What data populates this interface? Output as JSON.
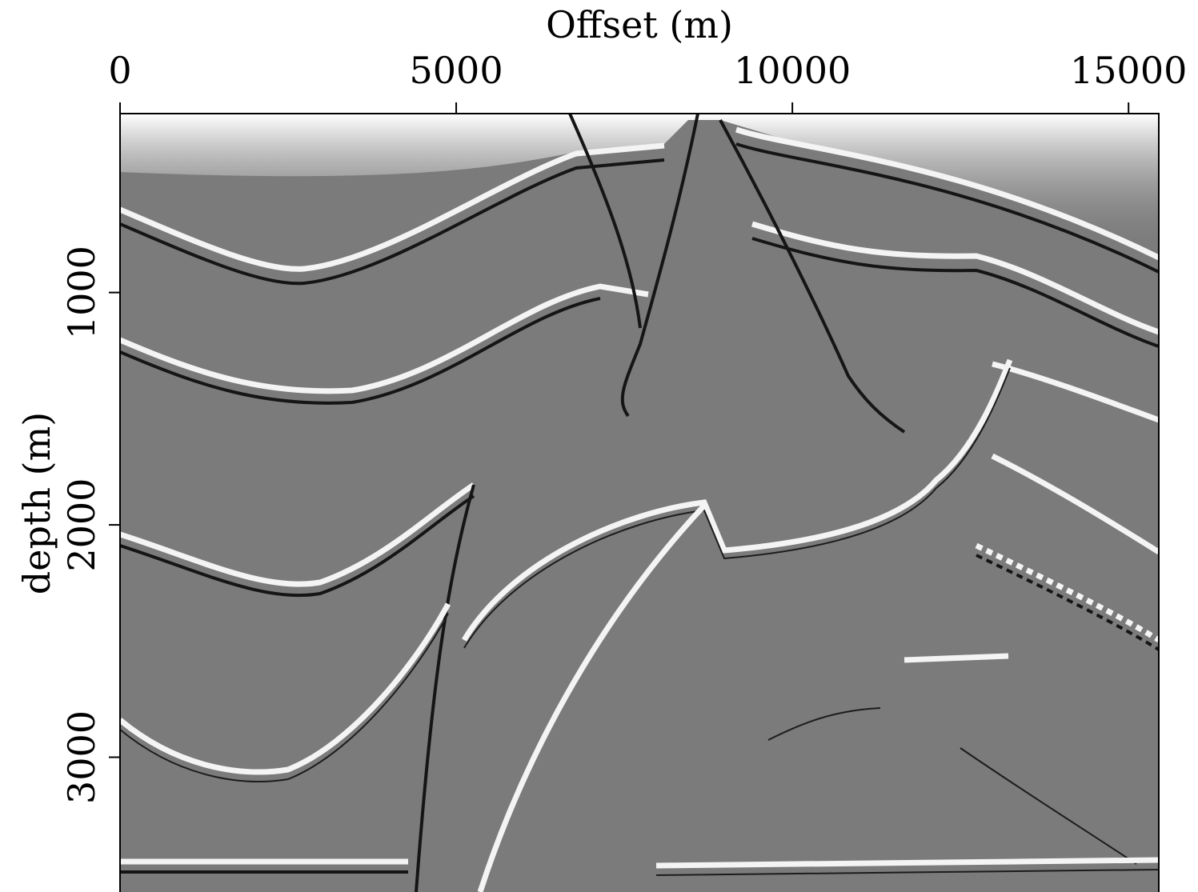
{
  "chart_data": {
    "type": "image",
    "x_label": "Offset (m)",
    "y_label": "depth (m)",
    "xlim": [
      0,
      15450
    ],
    "xticks": [
      0,
      5000,
      10000,
      15000
    ],
    "x_axis": "top",
    "ylim": [
      230,
      3580
    ],
    "yticks": [
      1000,
      2000,
      3000
    ],
    "y_inverted": true
  }
}
